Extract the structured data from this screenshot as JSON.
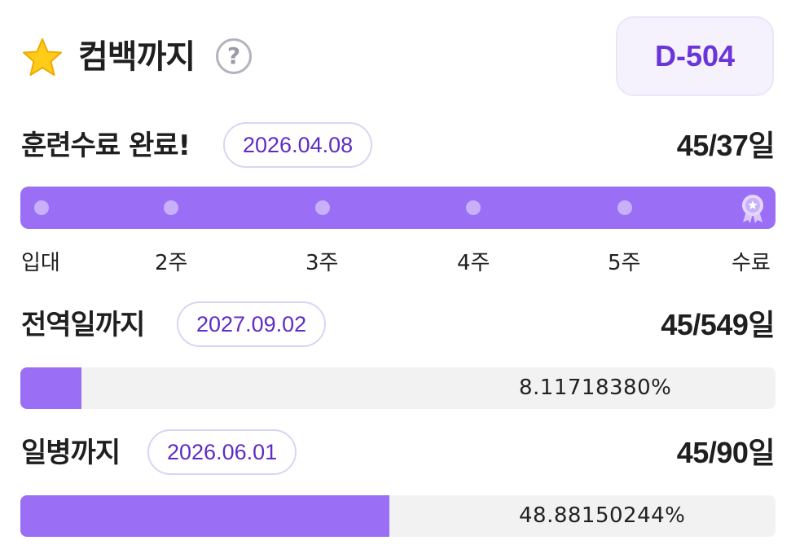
{
  "header": {
    "title": "컴백까지",
    "help_symbol": "?",
    "dday": "D-504",
    "star_icon": "star-icon",
    "accent_color": "#6b35d9"
  },
  "training": {
    "label": "훈련수료 완료!",
    "date": "2026.04.08",
    "count": "45/37",
    "unit": "일",
    "week_labels": [
      "입대",
      "2주",
      "3주",
      "4주",
      "5주",
      "수료"
    ],
    "bar_color": "#9b6ef6"
  },
  "discharge": {
    "label": "전역일까지",
    "date": "2027.09.02",
    "count": "45/549",
    "unit": "일",
    "percent_text": "8.11718380%",
    "progress": 0.081171838
  },
  "private_first": {
    "label": "일병까지",
    "date": "2026.06.01",
    "count": "45/90",
    "unit": "일",
    "percent_text": "48.88150244%",
    "progress": 0.4888150244
  }
}
